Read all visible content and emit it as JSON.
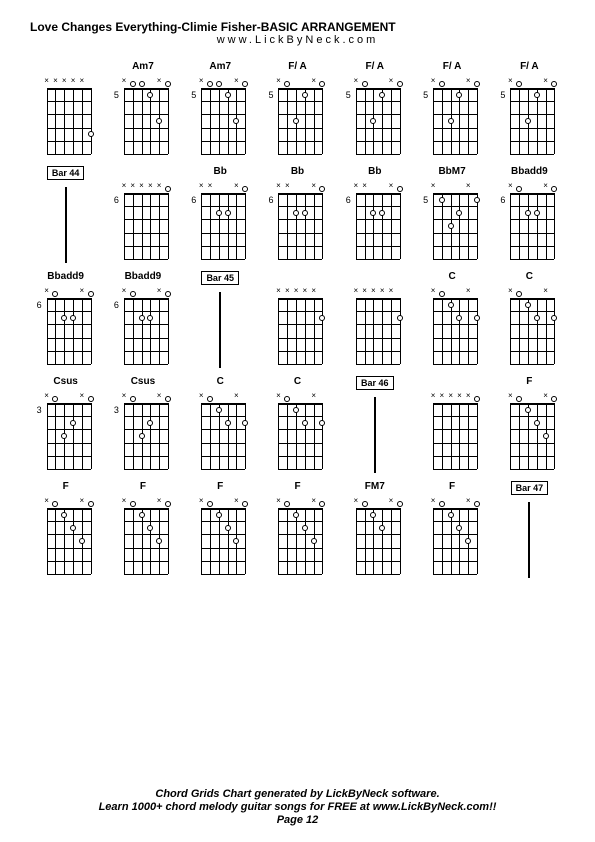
{
  "title": "Love Changes Everything-Climie Fisher-BASIC ARRANGEMENT",
  "subtitle": "www.LickByNeck.com",
  "footer": {
    "line1": "Chord Grids Chart generated by LickByNeck software.",
    "line2": "Learn 1000+ chord melody guitar songs for FREE at www.LickByNeck.com!!",
    "page": "Page 12"
  },
  "colors": {
    "background": "#ffffff",
    "foreground": "#000000"
  },
  "grid": {
    "rows": 5,
    "cols": 7
  },
  "chords": [
    {
      "label": "",
      "type": "chord",
      "fretNum": "",
      "mutes": [
        0,
        1,
        2,
        3,
        4
      ],
      "dots": [
        {
          "s": 5,
          "f": 4
        }
      ]
    },
    {
      "label": "Am7",
      "type": "chord",
      "fretNum": "5",
      "mutes": [
        0,
        4
      ],
      "dots": [
        {
          "s": 1,
          "f": 0
        },
        {
          "s": 2,
          "f": 0
        },
        {
          "s": 3,
          "f": 1
        },
        {
          "s": 4,
          "f": 3
        },
        {
          "s": 5,
          "f": 0
        }
      ]
    },
    {
      "label": "Am7",
      "type": "chord",
      "fretNum": "5",
      "mutes": [
        0,
        4
      ],
      "dots": [
        {
          "s": 1,
          "f": 0
        },
        {
          "s": 2,
          "f": 0
        },
        {
          "s": 3,
          "f": 1
        },
        {
          "s": 4,
          "f": 3
        },
        {
          "s": 5,
          "f": 0
        }
      ]
    },
    {
      "label": "F/ A",
      "type": "chord",
      "fretNum": "5",
      "mutes": [
        0,
        4
      ],
      "dots": [
        {
          "s": 1,
          "f": 0
        },
        {
          "s": 2,
          "f": 3
        },
        {
          "s": 3,
          "f": 1
        },
        {
          "s": 5,
          "f": 0
        }
      ]
    },
    {
      "label": "F/ A",
      "type": "chord",
      "fretNum": "5",
      "mutes": [
        0,
        4
      ],
      "dots": [
        {
          "s": 1,
          "f": 0
        },
        {
          "s": 2,
          "f": 3
        },
        {
          "s": 3,
          "f": 1
        },
        {
          "s": 5,
          "f": 0
        }
      ]
    },
    {
      "label": "F/ A",
      "type": "chord",
      "fretNum": "5",
      "mutes": [
        0,
        4
      ],
      "dots": [
        {
          "s": 1,
          "f": 0
        },
        {
          "s": 2,
          "f": 3
        },
        {
          "s": 3,
          "f": 1
        },
        {
          "s": 5,
          "f": 0
        }
      ]
    },
    {
      "label": "F/ A",
      "type": "chord",
      "fretNum": "5",
      "mutes": [
        0,
        4
      ],
      "dots": [
        {
          "s": 1,
          "f": 0
        },
        {
          "s": 2,
          "f": 3
        },
        {
          "s": 3,
          "f": 1
        },
        {
          "s": 5,
          "f": 0
        }
      ]
    },
    {
      "label": "Bar 44",
      "type": "bar"
    },
    {
      "label": "",
      "type": "chord",
      "fretNum": "6",
      "mutes": [
        0,
        1,
        2,
        3,
        4
      ],
      "dots": [
        {
          "s": 5,
          "f": 0
        }
      ]
    },
    {
      "label": "Bb",
      "type": "chord",
      "fretNum": "6",
      "mutes": [
        0,
        1,
        4
      ],
      "dots": [
        {
          "s": 2,
          "f": 2
        },
        {
          "s": 3,
          "f": 2
        },
        {
          "s": 5,
          "f": 0
        }
      ]
    },
    {
      "label": "Bb",
      "type": "chord",
      "fretNum": "6",
      "mutes": [
        0,
        1,
        4
      ],
      "dots": [
        {
          "s": 2,
          "f": 2
        },
        {
          "s": 3,
          "f": 2
        },
        {
          "s": 5,
          "f": 0
        }
      ]
    },
    {
      "label": "Bb",
      "type": "chord",
      "fretNum": "6",
      "mutes": [
        0,
        1,
        4
      ],
      "dots": [
        {
          "s": 2,
          "f": 2
        },
        {
          "s": 3,
          "f": 2
        },
        {
          "s": 5,
          "f": 0
        }
      ]
    },
    {
      "label": "BbM7",
      "type": "chord",
      "fretNum": "5",
      "mutes": [
        0,
        4
      ],
      "dots": [
        {
          "s": 1,
          "f": 1
        },
        {
          "s": 2,
          "f": 3
        },
        {
          "s": 3,
          "f": 2
        },
        {
          "s": 5,
          "f": 1
        }
      ]
    },
    {
      "label": "Bbadd9",
      "type": "chord",
      "fretNum": "6",
      "mutes": [
        0,
        4
      ],
      "dots": [
        {
          "s": 1,
          "f": 0
        },
        {
          "s": 2,
          "f": 2
        },
        {
          "s": 3,
          "f": 2
        },
        {
          "s": 5,
          "f": 0
        }
      ]
    },
    {
      "label": "Bbadd9",
      "type": "chord",
      "fretNum": "6",
      "mutes": [
        0,
        4
      ],
      "dots": [
        {
          "s": 1,
          "f": 0
        },
        {
          "s": 2,
          "f": 2
        },
        {
          "s": 3,
          "f": 2
        },
        {
          "s": 5,
          "f": 0
        }
      ]
    },
    {
      "label": "Bbadd9",
      "type": "chord",
      "fretNum": "6",
      "mutes": [
        0,
        4
      ],
      "dots": [
        {
          "s": 1,
          "f": 0
        },
        {
          "s": 2,
          "f": 2
        },
        {
          "s": 3,
          "f": 2
        },
        {
          "s": 5,
          "f": 0
        }
      ]
    },
    {
      "label": "Bar 45",
      "type": "bar"
    },
    {
      "label": "",
      "type": "chord",
      "fretNum": "",
      "mutes": [
        0,
        1,
        2,
        3,
        4
      ],
      "dots": [
        {
          "s": 5,
          "f": 2
        }
      ]
    },
    {
      "label": "",
      "type": "chord",
      "fretNum": "",
      "mutes": [
        0,
        1,
        2,
        3,
        4
      ],
      "dots": [
        {
          "s": 5,
          "f": 2
        }
      ]
    },
    {
      "label": "C",
      "type": "chord",
      "fretNum": "",
      "mutes": [
        0,
        4
      ],
      "dots": [
        {
          "s": 1,
          "f": 0
        },
        {
          "s": 2,
          "f": 1
        },
        {
          "s": 3,
          "f": 2
        },
        {
          "s": 5,
          "f": 2
        }
      ]
    },
    {
      "label": "C",
      "type": "chord",
      "fretNum": "",
      "mutes": [
        0,
        4
      ],
      "dots": [
        {
          "s": 1,
          "f": 0
        },
        {
          "s": 2,
          "f": 1
        },
        {
          "s": 3,
          "f": 2
        },
        {
          "s": 5,
          "f": 2
        }
      ]
    },
    {
      "label": "Csus",
      "type": "chord",
      "fretNum": "3",
      "mutes": [
        0,
        4
      ],
      "dots": [
        {
          "s": 1,
          "f": 0
        },
        {
          "s": 2,
          "f": 3
        },
        {
          "s": 3,
          "f": 2
        },
        {
          "s": 5,
          "f": 0
        }
      ]
    },
    {
      "label": "Csus",
      "type": "chord",
      "fretNum": "3",
      "mutes": [
        0,
        4
      ],
      "dots": [
        {
          "s": 1,
          "f": 0
        },
        {
          "s": 2,
          "f": 3
        },
        {
          "s": 3,
          "f": 2
        },
        {
          "s": 5,
          "f": 0
        }
      ]
    },
    {
      "label": "C",
      "type": "chord",
      "fretNum": "",
      "mutes": [
        0,
        4
      ],
      "dots": [
        {
          "s": 1,
          "f": 0
        },
        {
          "s": 2,
          "f": 1
        },
        {
          "s": 3,
          "f": 2
        },
        {
          "s": 5,
          "f": 2
        }
      ]
    },
    {
      "label": "C",
      "type": "chord",
      "fretNum": "",
      "mutes": [
        0,
        4
      ],
      "dots": [
        {
          "s": 1,
          "f": 0
        },
        {
          "s": 2,
          "f": 1
        },
        {
          "s": 3,
          "f": 2
        },
        {
          "s": 5,
          "f": 2
        }
      ]
    },
    {
      "label": "Bar 46",
      "type": "bar"
    },
    {
      "label": "",
      "type": "chord",
      "fretNum": "",
      "mutes": [
        0,
        1,
        2,
        3,
        4
      ],
      "dots": [
        {
          "s": 5,
          "f": 0
        }
      ]
    },
    {
      "label": "F",
      "type": "chord",
      "fretNum": "",
      "mutes": [
        0,
        4
      ],
      "dots": [
        {
          "s": 1,
          "f": 0
        },
        {
          "s": 2,
          "f": 1
        },
        {
          "s": 3,
          "f": 2
        },
        {
          "s": 4,
          "f": 3
        },
        {
          "s": 5,
          "f": 0
        }
      ]
    },
    {
      "label": "F",
      "type": "chord",
      "fretNum": "",
      "mutes": [
        0,
        4
      ],
      "dots": [
        {
          "s": 1,
          "f": 0
        },
        {
          "s": 2,
          "f": 1
        },
        {
          "s": 3,
          "f": 2
        },
        {
          "s": 4,
          "f": 3
        },
        {
          "s": 5,
          "f": 0
        }
      ]
    },
    {
      "label": "F",
      "type": "chord",
      "fretNum": "",
      "mutes": [
        0,
        4
      ],
      "dots": [
        {
          "s": 1,
          "f": 0
        },
        {
          "s": 2,
          "f": 1
        },
        {
          "s": 3,
          "f": 2
        },
        {
          "s": 4,
          "f": 3
        },
        {
          "s": 5,
          "f": 0
        }
      ]
    },
    {
      "label": "F",
      "type": "chord",
      "fretNum": "",
      "mutes": [
        0,
        4
      ],
      "dots": [
        {
          "s": 1,
          "f": 0
        },
        {
          "s": 2,
          "f": 1
        },
        {
          "s": 3,
          "f": 2
        },
        {
          "s": 4,
          "f": 3
        },
        {
          "s": 5,
          "f": 0
        }
      ]
    },
    {
      "label": "F",
      "type": "chord",
      "fretNum": "",
      "mutes": [
        0,
        4
      ],
      "dots": [
        {
          "s": 1,
          "f": 0
        },
        {
          "s": 2,
          "f": 1
        },
        {
          "s": 3,
          "f": 2
        },
        {
          "s": 4,
          "f": 3
        },
        {
          "s": 5,
          "f": 0
        }
      ]
    },
    {
      "label": "FM7",
      "type": "chord",
      "fretNum": "",
      "mutes": [
        0,
        4
      ],
      "dots": [
        {
          "s": 1,
          "f": 0
        },
        {
          "s": 2,
          "f": 1
        },
        {
          "s": 3,
          "f": 2
        },
        {
          "s": 5,
          "f": 0
        }
      ]
    },
    {
      "label": "F",
      "type": "chord",
      "fretNum": "",
      "mutes": [
        0,
        4
      ],
      "dots": [
        {
          "s": 1,
          "f": 0
        },
        {
          "s": 2,
          "f": 1
        },
        {
          "s": 3,
          "f": 2
        },
        {
          "s": 4,
          "f": 3
        },
        {
          "s": 5,
          "f": 0
        }
      ]
    },
    {
      "label": "Bar 47",
      "type": "bar"
    }
  ],
  "diagram": {
    "strings": 6,
    "frets": 5,
    "stringSpacing": 8.8,
    "fretSpacing": 13.2
  }
}
